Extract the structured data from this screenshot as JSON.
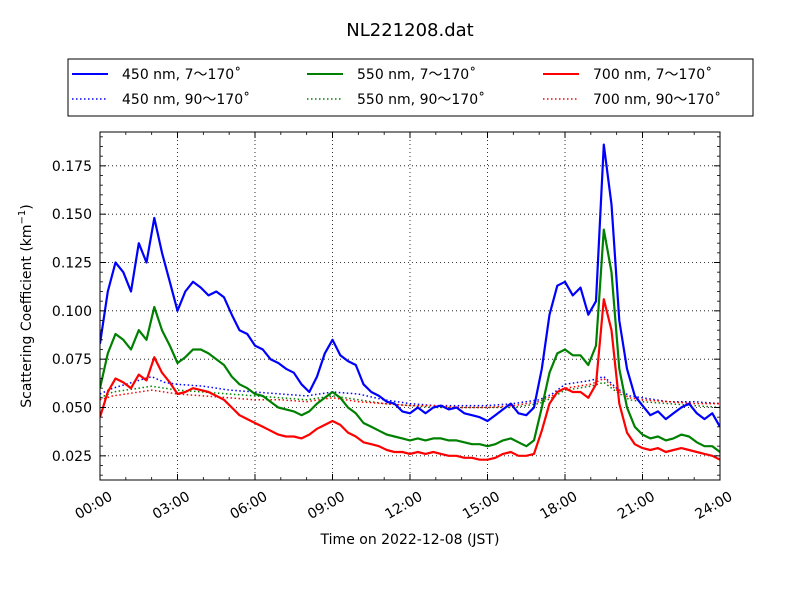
{
  "chart_data": {
    "type": "line",
    "title": "NL221208.dat",
    "xlabel": "Time on 2022-12-08 (JST)",
    "ylabel": "Scattering Coefficient (km",
    "ylabel_exponent": "−1",
    "ylabel_close": ")",
    "xlim": [
      0,
      24
    ],
    "ylim": [
      0.0125,
      0.1925
    ],
    "x_ticks": [
      0,
      3,
      6,
      9,
      12,
      15,
      18,
      21,
      24
    ],
    "x_tick_labels": [
      "00:00",
      "03:00",
      "06:00",
      "09:00",
      "12:00",
      "15:00",
      "18:00",
      "21:00",
      "24:00"
    ],
    "y_ticks": [
      0.025,
      0.05,
      0.075,
      0.1,
      0.125,
      0.15,
      0.175
    ],
    "y_tick_labels": [
      "0.025",
      "0.050",
      "0.075",
      "0.100",
      "0.125",
      "0.150",
      "0.175"
    ],
    "grid": true,
    "legend_position": "top",
    "x_unit": "hours",
    "series": [
      {
        "name": "450 nm, 7～170˚",
        "color": "#0000ff",
        "style": "solid",
        "x": [
          0,
          0.3,
          0.6,
          0.9,
          1.2,
          1.5,
          1.8,
          2.1,
          2.4,
          2.7,
          3.0,
          3.3,
          3.6,
          3.9,
          4.2,
          4.5,
          4.8,
          5.1,
          5.4,
          5.7,
          6.0,
          6.3,
          6.6,
          6.9,
          7.2,
          7.5,
          7.8,
          8.1,
          8.4,
          8.7,
          9.0,
          9.3,
          9.6,
          9.9,
          10.2,
          10.5,
          10.8,
          11.1,
          11.4,
          11.7,
          12.0,
          12.3,
          12.6,
          12.9,
          13.2,
          13.5,
          13.8,
          14.1,
          14.4,
          14.7,
          15.0,
          15.3,
          15.6,
          15.9,
          16.2,
          16.5,
          16.8,
          17.1,
          17.4,
          17.7,
          18.0,
          18.3,
          18.6,
          18.9,
          19.2,
          19.5,
          19.8,
          20.1,
          20.4,
          20.7,
          21.0,
          21.3,
          21.6,
          21.9,
          22.2,
          22.5,
          22.8,
          23.1,
          23.4,
          23.7,
          24.0
        ],
        "y": [
          0.083,
          0.11,
          0.125,
          0.12,
          0.11,
          0.135,
          0.125,
          0.148,
          0.13,
          0.115,
          0.1,
          0.11,
          0.115,
          0.112,
          0.108,
          0.11,
          0.107,
          0.098,
          0.09,
          0.088,
          0.082,
          0.08,
          0.075,
          0.073,
          0.07,
          0.068,
          0.062,
          0.058,
          0.066,
          0.078,
          0.085,
          0.077,
          0.074,
          0.072,
          0.062,
          0.058,
          0.056,
          0.053,
          0.052,
          0.048,
          0.047,
          0.05,
          0.047,
          0.05,
          0.051,
          0.049,
          0.05,
          0.047,
          0.046,
          0.045,
          0.043,
          0.046,
          0.049,
          0.052,
          0.047,
          0.046,
          0.05,
          0.07,
          0.098,
          0.113,
          0.115,
          0.108,
          0.112,
          0.098,
          0.105,
          0.186,
          0.155,
          0.095,
          0.07,
          0.056,
          0.051,
          0.046,
          0.048,
          0.044,
          0.047,
          0.05,
          0.052,
          0.047,
          0.044,
          0.047,
          0.04
        ]
      },
      {
        "name": "450 nm, 90～170˚",
        "color": "#0000ff",
        "style": "dotted",
        "x": [
          0,
          0.5,
          1.0,
          1.5,
          2.0,
          2.5,
          3.0,
          4.0,
          5.0,
          6.0,
          7.0,
          8.0,
          9.0,
          10.0,
          11.0,
          12.0,
          13.0,
          14.0,
          15.0,
          16.0,
          17.0,
          17.5,
          18.0,
          18.5,
          19.0,
          19.5,
          20.0,
          20.5,
          21.0,
          22.0,
          23.0,
          24.0
        ],
        "y": [
          0.057,
          0.06,
          0.062,
          0.064,
          0.066,
          0.063,
          0.062,
          0.061,
          0.059,
          0.058,
          0.057,
          0.056,
          0.058,
          0.057,
          0.054,
          0.052,
          0.051,
          0.051,
          0.051,
          0.052,
          0.054,
          0.057,
          0.062,
          0.063,
          0.064,
          0.066,
          0.06,
          0.056,
          0.055,
          0.053,
          0.053,
          0.052
        ]
      },
      {
        "name": "550 nm, 7～170˚",
        "color": "#008000",
        "style": "solid",
        "x": [
          0,
          0.3,
          0.6,
          0.9,
          1.2,
          1.5,
          1.8,
          2.1,
          2.4,
          2.7,
          3.0,
          3.3,
          3.6,
          3.9,
          4.2,
          4.5,
          4.8,
          5.1,
          5.4,
          5.7,
          6.0,
          6.3,
          6.6,
          6.9,
          7.2,
          7.5,
          7.8,
          8.1,
          8.4,
          8.7,
          9.0,
          9.3,
          9.6,
          9.9,
          10.2,
          10.5,
          10.8,
          11.1,
          11.4,
          11.7,
          12.0,
          12.3,
          12.6,
          12.9,
          13.2,
          13.5,
          13.8,
          14.1,
          14.4,
          14.7,
          15.0,
          15.3,
          15.6,
          15.9,
          16.2,
          16.5,
          16.8,
          17.1,
          17.4,
          17.7,
          18.0,
          18.3,
          18.6,
          18.9,
          19.2,
          19.5,
          19.8,
          20.1,
          20.4,
          20.7,
          21.0,
          21.3,
          21.6,
          21.9,
          22.2,
          22.5,
          22.8,
          23.1,
          23.4,
          23.7,
          24.0
        ],
        "y": [
          0.06,
          0.078,
          0.088,
          0.085,
          0.08,
          0.09,
          0.085,
          0.102,
          0.09,
          0.082,
          0.073,
          0.076,
          0.08,
          0.08,
          0.078,
          0.075,
          0.072,
          0.066,
          0.062,
          0.06,
          0.057,
          0.056,
          0.053,
          0.05,
          0.049,
          0.048,
          0.046,
          0.048,
          0.052,
          0.055,
          0.058,
          0.055,
          0.05,
          0.047,
          0.042,
          0.04,
          0.038,
          0.036,
          0.035,
          0.034,
          0.033,
          0.034,
          0.033,
          0.034,
          0.034,
          0.033,
          0.033,
          0.032,
          0.031,
          0.031,
          0.03,
          0.031,
          0.033,
          0.034,
          0.032,
          0.03,
          0.033,
          0.05,
          0.068,
          0.078,
          0.08,
          0.077,
          0.077,
          0.072,
          0.082,
          0.142,
          0.12,
          0.07,
          0.05,
          0.04,
          0.036,
          0.034,
          0.035,
          0.033,
          0.034,
          0.036,
          0.035,
          0.032,
          0.03,
          0.03,
          0.027
        ]
      },
      {
        "name": "550 nm, 90～170˚",
        "color": "#008000",
        "style": "dotted",
        "x": [
          0,
          0.5,
          1.0,
          1.5,
          2.0,
          2.5,
          3.0,
          4.0,
          5.0,
          6.0,
          7.0,
          8.0,
          9.0,
          10.0,
          11.0,
          12.0,
          13.0,
          14.0,
          15.0,
          16.0,
          17.0,
          17.5,
          18.0,
          18.5,
          19.0,
          19.5,
          20.0,
          20.5,
          21.0,
          22.0,
          23.0,
          24.0
        ],
        "y": [
          0.055,
          0.058,
          0.059,
          0.06,
          0.061,
          0.06,
          0.059,
          0.058,
          0.057,
          0.056,
          0.055,
          0.054,
          0.056,
          0.054,
          0.052,
          0.051,
          0.05,
          0.05,
          0.05,
          0.05,
          0.052,
          0.055,
          0.059,
          0.06,
          0.061,
          0.063,
          0.058,
          0.054,
          0.053,
          0.052,
          0.051,
          0.05
        ]
      },
      {
        "name": "700 nm, 7～170˚",
        "color": "#ff0000",
        "style": "solid",
        "x": [
          0,
          0.3,
          0.6,
          0.9,
          1.2,
          1.5,
          1.8,
          2.1,
          2.4,
          2.7,
          3.0,
          3.3,
          3.6,
          3.9,
          4.2,
          4.5,
          4.8,
          5.1,
          5.4,
          5.7,
          6.0,
          6.3,
          6.6,
          6.9,
          7.2,
          7.5,
          7.8,
          8.1,
          8.4,
          8.7,
          9.0,
          9.3,
          9.6,
          9.9,
          10.2,
          10.5,
          10.8,
          11.1,
          11.4,
          11.7,
          12.0,
          12.3,
          12.6,
          12.9,
          13.2,
          13.5,
          13.8,
          14.1,
          14.4,
          14.7,
          15.0,
          15.3,
          15.6,
          15.9,
          16.2,
          16.5,
          16.8,
          17.1,
          17.4,
          17.7,
          18.0,
          18.3,
          18.6,
          18.9,
          19.2,
          19.5,
          19.8,
          20.1,
          20.4,
          20.7,
          21.0,
          21.3,
          21.6,
          21.9,
          22.2,
          22.5,
          22.8,
          23.1,
          23.4,
          23.7,
          24.0
        ],
        "y": [
          0.045,
          0.058,
          0.065,
          0.063,
          0.06,
          0.067,
          0.064,
          0.076,
          0.068,
          0.063,
          0.057,
          0.058,
          0.06,
          0.059,
          0.058,
          0.056,
          0.054,
          0.05,
          0.046,
          0.044,
          0.042,
          0.04,
          0.038,
          0.036,
          0.035,
          0.035,
          0.034,
          0.036,
          0.039,
          0.041,
          0.043,
          0.041,
          0.037,
          0.035,
          0.032,
          0.031,
          0.03,
          0.028,
          0.027,
          0.027,
          0.026,
          0.027,
          0.026,
          0.027,
          0.026,
          0.025,
          0.025,
          0.024,
          0.024,
          0.023,
          0.023,
          0.024,
          0.026,
          0.027,
          0.025,
          0.025,
          0.026,
          0.038,
          0.052,
          0.058,
          0.06,
          0.058,
          0.058,
          0.055,
          0.062,
          0.106,
          0.09,
          0.052,
          0.037,
          0.031,
          0.029,
          0.028,
          0.029,
          0.027,
          0.028,
          0.029,
          0.028,
          0.027,
          0.026,
          0.025,
          0.023
        ]
      },
      {
        "name": "700 nm, 90～170˚",
        "color": "#ff0000",
        "style": "dotted",
        "x": [
          0,
          0.5,
          1.0,
          1.5,
          2.0,
          2.5,
          3.0,
          4.0,
          5.0,
          6.0,
          7.0,
          8.0,
          9.0,
          10.0,
          11.0,
          12.0,
          13.0,
          14.0,
          15.0,
          16.0,
          17.0,
          17.5,
          18.0,
          18.5,
          19.0,
          19.5,
          20.0,
          20.5,
          21.0,
          22.0,
          23.0,
          24.0
        ],
        "y": [
          0.054,
          0.056,
          0.057,
          0.058,
          0.059,
          0.058,
          0.057,
          0.056,
          0.055,
          0.054,
          0.054,
          0.053,
          0.055,
          0.053,
          0.052,
          0.051,
          0.051,
          0.05,
          0.05,
          0.051,
          0.053,
          0.056,
          0.06,
          0.061,
          0.062,
          0.065,
          0.059,
          0.055,
          0.054,
          0.053,
          0.052,
          0.052
        ]
      }
    ]
  }
}
